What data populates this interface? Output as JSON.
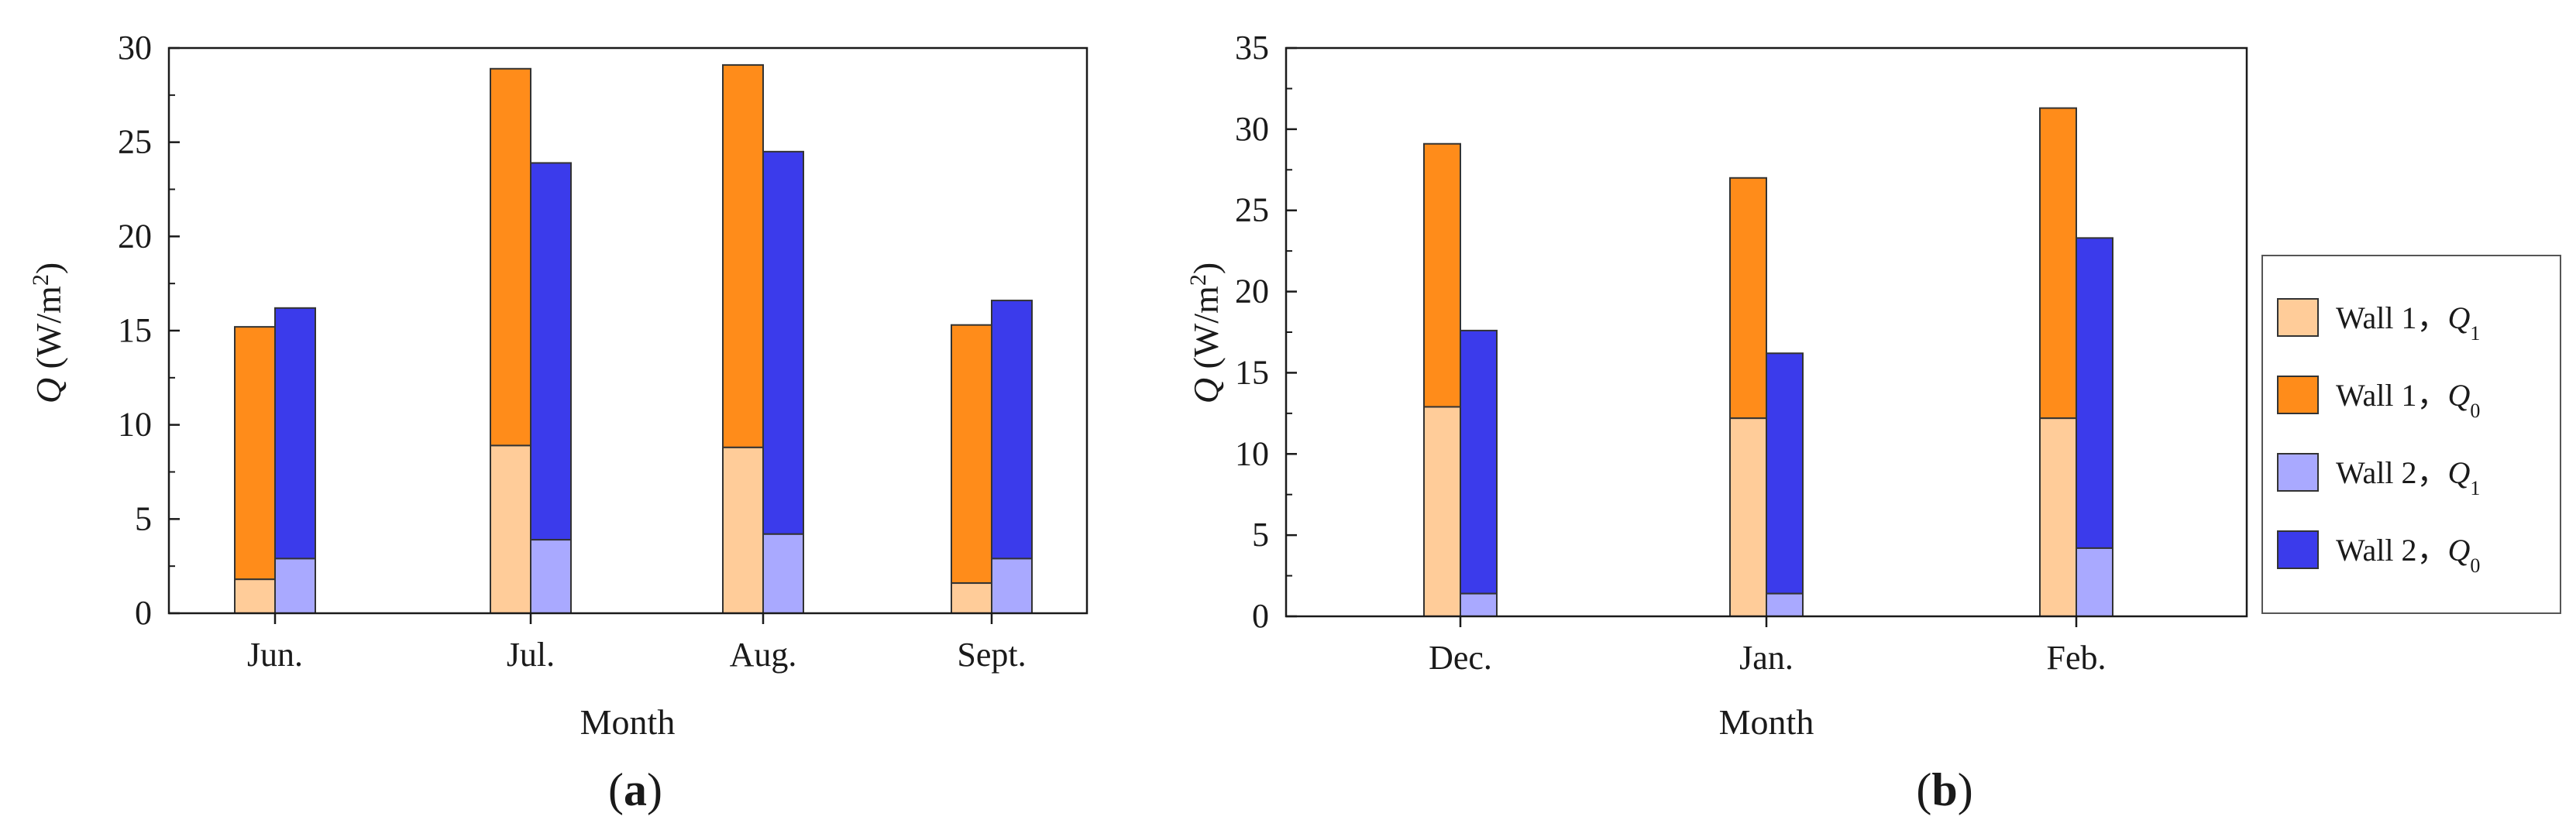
{
  "chart_data": [
    {
      "type": "bar",
      "stacked": true,
      "panel_label": "a",
      "xlabel": "Month",
      "ylabel_symbol": "Q",
      "ylabel_unit_open": " (W/m",
      "ylabel_unit_sup": "2",
      "ylabel_unit_close": ")",
      "ylim": [
        0,
        30
      ],
      "yticks": [
        0,
        5,
        10,
        15,
        20,
        25,
        30
      ],
      "categories": [
        "Jun.",
        "Jul.",
        "Aug.",
        "Sept."
      ],
      "walls": [
        {
          "name": "Wall 1",
          "Q1": [
            1.8,
            8.9,
            8.8,
            1.6
          ],
          "total": [
            15.2,
            28.9,
            29.1,
            15.3
          ]
        },
        {
          "name": "Wall 2",
          "Q1": [
            2.9,
            3.9,
            4.2,
            2.9
          ],
          "total": [
            16.2,
            23.9,
            24.5,
            16.6
          ]
        }
      ]
    },
    {
      "type": "bar",
      "stacked": true,
      "panel_label": "b",
      "xlabel": "Month",
      "ylabel_symbol": "Q",
      "ylabel_unit_open": " (W/m",
      "ylabel_unit_sup": "2",
      "ylabel_unit_close": ")",
      "ylim": [
        0,
        35
      ],
      "yticks": [
        0,
        5,
        10,
        15,
        20,
        25,
        30,
        35
      ],
      "categories": [
        "Dec.",
        "Jan.",
        "Feb."
      ],
      "walls": [
        {
          "name": "Wall 1",
          "Q1": [
            12.9,
            12.2,
            12.2
          ],
          "total": [
            29.1,
            27.0,
            31.3
          ]
        },
        {
          "name": "Wall 2",
          "Q1": [
            1.4,
            1.4,
            4.2
          ],
          "total": [
            17.6,
            16.2,
            23.3
          ]
        }
      ]
    }
  ],
  "legend": {
    "placement": "right",
    "items": [
      {
        "label": "Wall 1，",
        "symbol": "Q",
        "subscript": "1",
        "color": "#FFCC99"
      },
      {
        "label": "Wall 1，",
        "symbol": "Q",
        "subscript": "0",
        "color": "#FF8C1A"
      },
      {
        "label": "Wall 2，",
        "symbol": "Q",
        "subscript": "1",
        "color": "#A9A9FF"
      },
      {
        "label": "Wall 2，",
        "symbol": "Q",
        "subscript": "0",
        "color": "#3B3BEB"
      }
    ]
  },
  "colors": {
    "wall1_q1": "#FFCC99",
    "wall1_q0": "#FF8C1A",
    "wall2_q1": "#A9A9FF",
    "wall2_q0": "#3B3BEB",
    "axis": "#1a1a1a"
  }
}
